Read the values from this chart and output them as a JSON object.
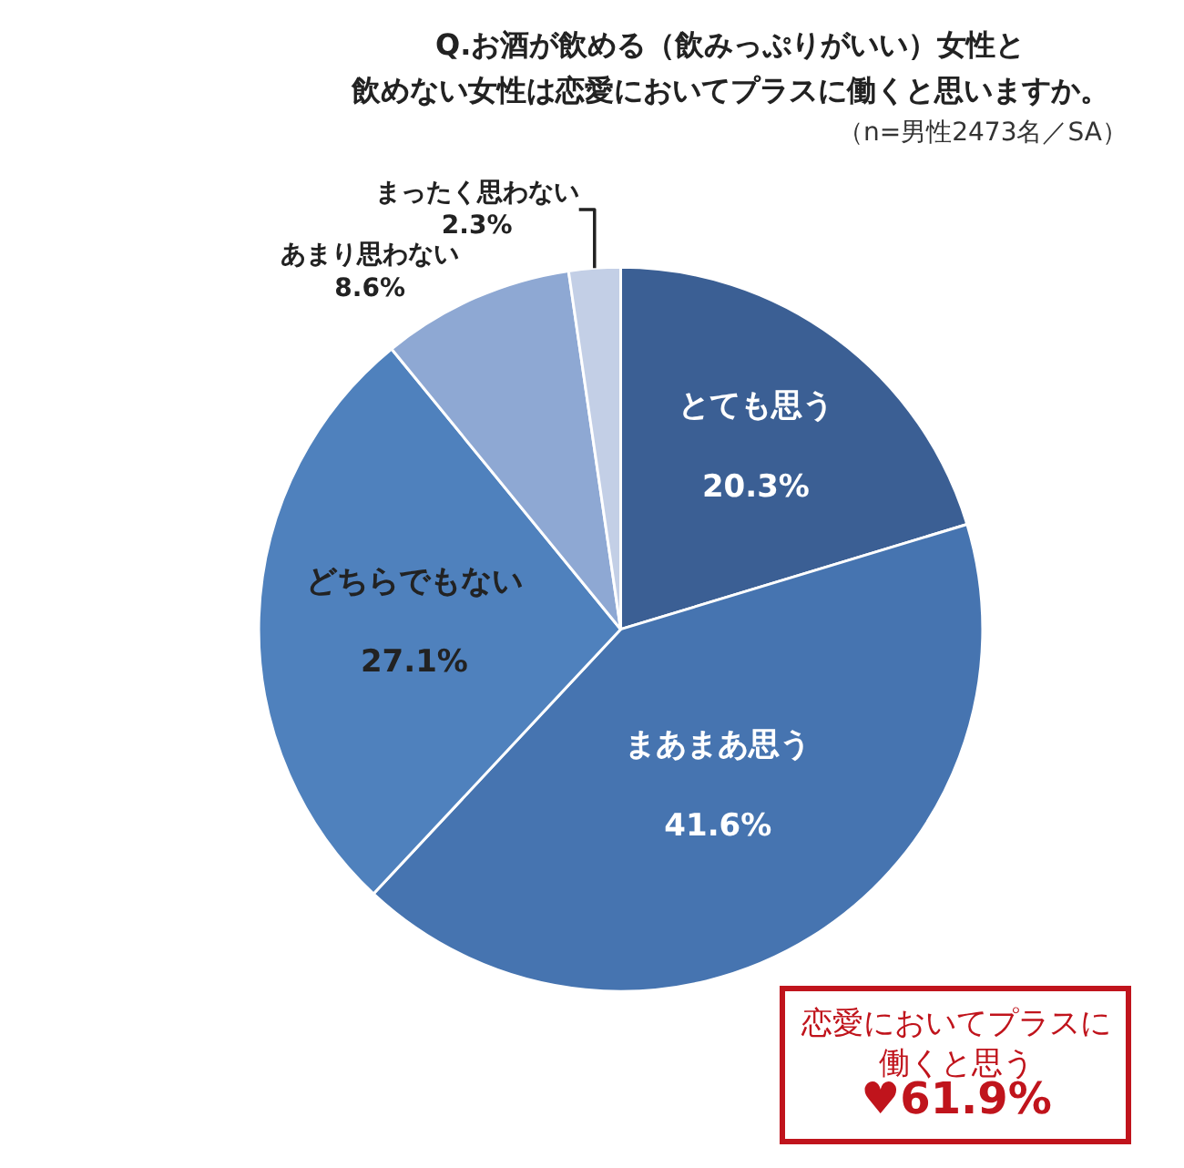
{
  "chart_data": {
    "type": "pie",
    "title": "Q.お酒が飲める（飲みっぷりがいい）女性と",
    "subtitle": "飲めない女性は恋愛においてプラスに働くと思いますか。",
    "categories": [
      "とても思う",
      "まあまあ思う",
      "どちらでもない",
      "あまり思わない",
      "まったく思わない"
    ],
    "values": [
      20.3,
      41.6,
      27.1,
      8.6,
      2.3
    ],
    "value_labels": [
      "20.3%",
      "41.6%",
      "27.1%",
      "8.6%",
      "2.3%"
    ],
    "colors": [
      "#3b5f94",
      "#4674b0",
      "#4f81bd",
      "#8ea8d3",
      "#c3cfe6"
    ],
    "annotations": [
      "（n=男性2473名／SA）",
      "恋愛においてプラスに働くと思う",
      "♥61.9%"
    ],
    "legend": false
  }
}
